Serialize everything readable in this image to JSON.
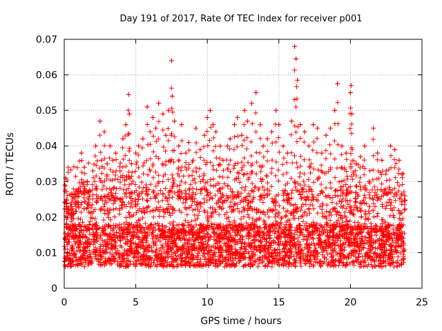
{
  "chart_data": {
    "type": "scatter",
    "title": "Day 191 of 2017, Rate Of TEC Index for receiver p001",
    "xlabel": "GPS time / hours",
    "ylabel": "ROTI / TECUs",
    "xlim": [
      0,
      25
    ],
    "ylim": [
      0,
      0.07
    ],
    "grid": true,
    "marker": "+",
    "x_ticks": [
      0,
      5,
      10,
      15,
      20,
      25
    ],
    "x_tick_labels": [
      "0",
      "5",
      "10",
      "15",
      "20",
      "25"
    ],
    "y_ticks": [
      0,
      0.01,
      0.02,
      0.03,
      0.04,
      0.05,
      0.06,
      0.07
    ],
    "y_tick_labels": [
      "0",
      "0.01",
      "0.02",
      "0.03",
      "0.04",
      "0.05",
      "0.06",
      "0.07"
    ],
    "colors": {
      "points": "#ff0000",
      "grid": "#a0a0a0",
      "axes": "#000000"
    },
    "series": [
      {
        "x": [
          0.1,
          0.15,
          0.3,
          0.5,
          0.8,
          1.0,
          1.2,
          1.4,
          1.6,
          1.7,
          2.0,
          2.2,
          2.5,
          2.6,
          2.8,
          3.0,
          3.2,
          3.4,
          3.6,
          3.9,
          4.1,
          4.3,
          4.5,
          4.55,
          4.7,
          5.0,
          5.2,
          5.5,
          5.8,
          6.0,
          6.2,
          6.4,
          6.6,
          6.9,
          7.1,
          7.3,
          7.5,
          7.55,
          7.7,
          8.0,
          8.2,
          8.5,
          8.7,
          9.0,
          9.2,
          9.5,
          9.8,
          10.0,
          10.2,
          10.4,
          10.6,
          10.9,
          11.1,
          11.4,
          11.6,
          11.9,
          12.1,
          12.4,
          12.6,
          12.8,
          13.1,
          13.4,
          13.7,
          13.9,
          14.2,
          14.5,
          14.8,
          15.0,
          15.3,
          15.6,
          15.9,
          16.1,
          16.2,
          16.3,
          16.5,
          16.8,
          17.1,
          17.4,
          17.7,
          18.0,
          18.3,
          18.6,
          18.9,
          19.1,
          19.4,
          19.7,
          20.0,
          20.05,
          20.1,
          20.4,
          20.7,
          21.0,
          21.3,
          21.6,
          21.9,
          22.2,
          22.5,
          22.8,
          23.1,
          23.4,
          23.6,
          23.8
        ],
        "y": [
          0.031,
          0.025,
          0.022,
          0.02,
          0.024,
          0.028,
          0.038,
          0.034,
          0.03,
          0.027,
          0.033,
          0.04,
          0.047,
          0.036,
          0.044,
          0.035,
          0.04,
          0.036,
          0.038,
          0.033,
          0.042,
          0.046,
          0.0545,
          0.049,
          0.035,
          0.038,
          0.04,
          0.042,
          0.051,
          0.044,
          0.048,
          0.045,
          0.052,
          0.049,
          0.043,
          0.05,
          0.064,
          0.054,
          0.047,
          0.04,
          0.046,
          0.038,
          0.041,
          0.036,
          0.045,
          0.039,
          0.043,
          0.048,
          0.05,
          0.046,
          0.044,
          0.04,
          0.036,
          0.04,
          0.042,
          0.046,
          0.048,
          0.043,
          0.05,
          0.047,
          0.052,
          0.055,
          0.046,
          0.04,
          0.042,
          0.044,
          0.05,
          0.046,
          0.04,
          0.038,
          0.047,
          0.068,
          0.0645,
          0.0585,
          0.046,
          0.044,
          0.04,
          0.046,
          0.045,
          0.038,
          0.043,
          0.045,
          0.05,
          0.0575,
          0.04,
          0.038,
          0.055,
          0.057,
          0.049,
          0.035,
          0.037,
          0.04,
          0.03,
          0.045,
          0.038,
          0.036,
          0.033,
          0.04,
          0.039,
          0.036,
          0.032,
          0.026
        ]
      }
    ]
  }
}
